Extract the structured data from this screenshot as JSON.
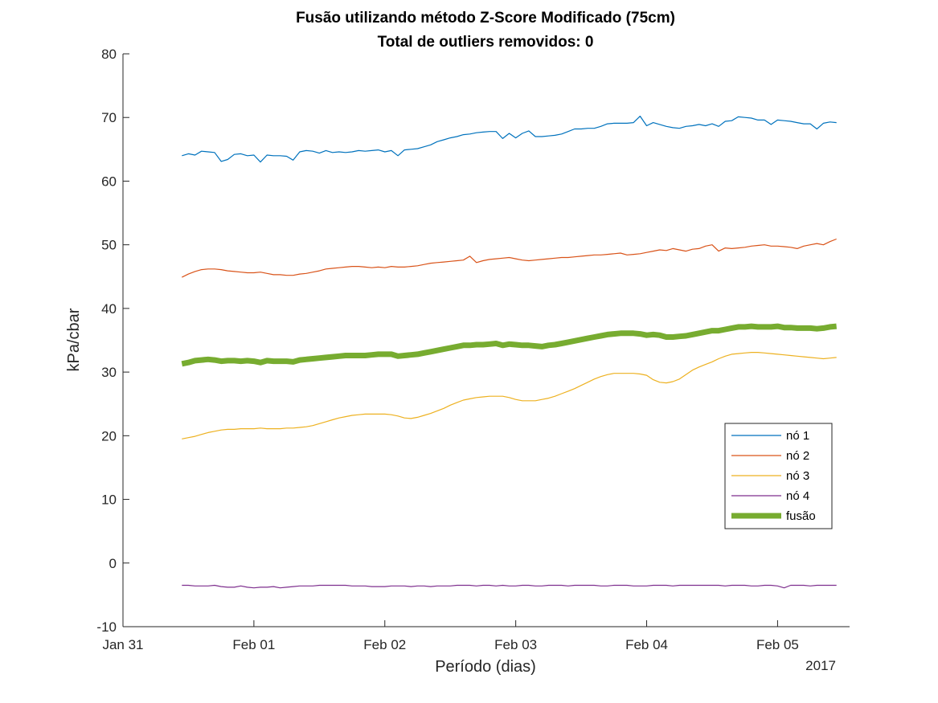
{
  "chart_data": {
    "type": "line",
    "title": "Fusão utilizando método Z-Score Modificado (75cm)",
    "subtitle": "Total de outliers removidos: 0",
    "xlabel": "Período (dias)",
    "ylabel": "kPa/cbar",
    "year_label": "2017",
    "x_unit": "days since Jan 31 2017 00:00",
    "xlim": [
      0,
      5.55
    ],
    "ylim": [
      -10,
      80
    ],
    "x_ticks": [
      {
        "value": 0,
        "label": "Jan 31"
      },
      {
        "value": 1,
        "label": "Feb 01"
      },
      {
        "value": 2,
        "label": "Feb 02"
      },
      {
        "value": 3,
        "label": "Feb 03"
      },
      {
        "value": 4,
        "label": "Feb 04"
      },
      {
        "value": 5,
        "label": "Feb 05"
      }
    ],
    "y_ticks": [
      -10,
      0,
      10,
      20,
      30,
      40,
      50,
      60,
      70,
      80
    ],
    "grid": false,
    "legend_position": "right",
    "x": [
      0.45,
      0.5,
      0.55,
      0.6,
      0.65,
      0.7,
      0.75,
      0.8,
      0.85,
      0.9,
      0.95,
      1.0,
      1.05,
      1.1,
      1.15,
      1.2,
      1.25,
      1.3,
      1.35,
      1.4,
      1.45,
      1.5,
      1.55,
      1.6,
      1.65,
      1.7,
      1.75,
      1.8,
      1.85,
      1.9,
      1.95,
      2.0,
      2.05,
      2.1,
      2.15,
      2.2,
      2.25,
      2.3,
      2.35,
      2.4,
      2.45,
      2.5,
      2.55,
      2.6,
      2.65,
      2.7,
      2.75,
      2.8,
      2.85,
      2.9,
      2.95,
      3.0,
      3.05,
      3.1,
      3.15,
      3.2,
      3.25,
      3.3,
      3.35,
      3.4,
      3.45,
      3.5,
      3.55,
      3.6,
      3.65,
      3.7,
      3.75,
      3.8,
      3.85,
      3.9,
      3.95,
      4.0,
      4.05,
      4.1,
      4.15,
      4.2,
      4.25,
      4.3,
      4.35,
      4.4,
      4.45,
      4.5,
      4.55,
      4.6,
      4.65,
      4.7,
      4.75,
      4.8,
      4.85,
      4.9,
      4.95,
      5.0,
      5.05,
      5.1,
      5.15,
      5.2,
      5.25,
      5.3,
      5.35,
      5.4,
      5.45
    ],
    "series": [
      {
        "name": "nó 1",
        "color": "#0072bd",
        "width": 1.2,
        "values": [
          64.0,
          64.3,
          64.1,
          64.7,
          64.6,
          64.5,
          63.1,
          63.4,
          64.2,
          64.3,
          64.0,
          64.1,
          63.0,
          64.1,
          64.0,
          64.0,
          63.9,
          63.3,
          64.6,
          64.8,
          64.7,
          64.4,
          64.8,
          64.5,
          64.6,
          64.5,
          64.6,
          64.8,
          64.7,
          64.8,
          64.9,
          64.6,
          64.8,
          64.0,
          64.9,
          65.0,
          65.1,
          65.4,
          65.7,
          66.2,
          66.5,
          66.8,
          67.0,
          67.3,
          67.4,
          67.6,
          67.7,
          67.8,
          67.8,
          66.7,
          67.5,
          66.8,
          67.5,
          67.9,
          67.0,
          67.0,
          67.1,
          67.2,
          67.4,
          67.8,
          68.2,
          68.2,
          68.3,
          68.3,
          68.6,
          69.0,
          69.1,
          69.1,
          69.1,
          69.2,
          70.2,
          68.7,
          69.2,
          68.9,
          68.6,
          68.4,
          68.3,
          68.6,
          68.7,
          68.9,
          68.7,
          69.0,
          68.6,
          69.4,
          69.5,
          70.1,
          70.0,
          69.9,
          69.6,
          69.6,
          68.9,
          69.6,
          69.5,
          69.4,
          69.2,
          69.0,
          69.0,
          68.2,
          69.1,
          69.3,
          69.2
        ]
      },
      {
        "name": "nó 2",
        "color": "#d95319",
        "width": 1.2,
        "values": [
          44.9,
          45.4,
          45.8,
          46.1,
          46.2,
          46.2,
          46.1,
          45.9,
          45.8,
          45.7,
          45.6,
          45.6,
          45.7,
          45.5,
          45.3,
          45.3,
          45.2,
          45.2,
          45.4,
          45.5,
          45.7,
          45.9,
          46.2,
          46.3,
          46.4,
          46.5,
          46.6,
          46.6,
          46.5,
          46.4,
          46.5,
          46.4,
          46.6,
          46.5,
          46.5,
          46.6,
          46.7,
          46.9,
          47.1,
          47.2,
          47.3,
          47.4,
          47.5,
          47.6,
          48.2,
          47.2,
          47.5,
          47.7,
          47.8,
          47.9,
          48.0,
          47.8,
          47.6,
          47.5,
          47.6,
          47.7,
          47.8,
          47.9,
          48.0,
          48.0,
          48.1,
          48.2,
          48.3,
          48.4,
          48.4,
          48.5,
          48.6,
          48.7,
          48.4,
          48.5,
          48.6,
          48.8,
          49.0,
          49.2,
          49.1,
          49.4,
          49.2,
          49.0,
          49.3,
          49.4,
          49.8,
          50.0,
          49.0,
          49.5,
          49.4,
          49.5,
          49.6,
          49.8,
          49.9,
          50.0,
          49.8,
          49.8,
          49.7,
          49.6,
          49.4,
          49.8,
          50.0,
          50.2,
          50.0,
          50.5,
          50.9
        ]
      },
      {
        "name": "nó 3",
        "color": "#edb120",
        "width": 1.2,
        "values": [
          19.5,
          19.7,
          19.9,
          20.2,
          20.5,
          20.7,
          20.9,
          21.0,
          21.0,
          21.1,
          21.1,
          21.1,
          21.2,
          21.1,
          21.1,
          21.1,
          21.2,
          21.2,
          21.3,
          21.4,
          21.6,
          21.9,
          22.2,
          22.5,
          22.8,
          23.0,
          23.2,
          23.3,
          23.4,
          23.4,
          23.4,
          23.4,
          23.3,
          23.1,
          22.8,
          22.7,
          22.9,
          23.2,
          23.5,
          23.9,
          24.3,
          24.8,
          25.2,
          25.6,
          25.8,
          26.0,
          26.1,
          26.2,
          26.2,
          26.2,
          26.0,
          25.7,
          25.5,
          25.5,
          25.5,
          25.7,
          25.9,
          26.2,
          26.6,
          27.0,
          27.4,
          27.9,
          28.4,
          28.9,
          29.3,
          29.6,
          29.8,
          29.8,
          29.8,
          29.8,
          29.7,
          29.5,
          28.8,
          28.4,
          28.3,
          28.5,
          28.9,
          29.6,
          30.3,
          30.8,
          31.2,
          31.6,
          32.1,
          32.5,
          32.8,
          32.9,
          33.0,
          33.1,
          33.1,
          33.0,
          32.9,
          32.8,
          32.7,
          32.6,
          32.5,
          32.4,
          32.3,
          32.2,
          32.1,
          32.2,
          32.3
        ]
      },
      {
        "name": "nó 4",
        "color": "#7e2f8e",
        "width": 1.2,
        "values": [
          -3.5,
          -3.5,
          -3.6,
          -3.6,
          -3.6,
          -3.5,
          -3.7,
          -3.8,
          -3.8,
          -3.6,
          -3.8,
          -3.9,
          -3.8,
          -3.8,
          -3.7,
          -3.9,
          -3.8,
          -3.7,
          -3.6,
          -3.6,
          -3.6,
          -3.5,
          -3.5,
          -3.5,
          -3.5,
          -3.5,
          -3.6,
          -3.6,
          -3.6,
          -3.7,
          -3.7,
          -3.7,
          -3.6,
          -3.6,
          -3.6,
          -3.7,
          -3.6,
          -3.6,
          -3.7,
          -3.6,
          -3.6,
          -3.6,
          -3.5,
          -3.5,
          -3.5,
          -3.6,
          -3.5,
          -3.5,
          -3.6,
          -3.5,
          -3.6,
          -3.6,
          -3.5,
          -3.5,
          -3.6,
          -3.6,
          -3.5,
          -3.5,
          -3.5,
          -3.6,
          -3.5,
          -3.5,
          -3.5,
          -3.5,
          -3.6,
          -3.6,
          -3.5,
          -3.5,
          -3.5,
          -3.6,
          -3.6,
          -3.6,
          -3.5,
          -3.5,
          -3.5,
          -3.6,
          -3.5,
          -3.5,
          -3.5,
          -3.5,
          -3.5,
          -3.5,
          -3.5,
          -3.6,
          -3.5,
          -3.5,
          -3.5,
          -3.6,
          -3.6,
          -3.5,
          -3.5,
          -3.6,
          -3.9,
          -3.5,
          -3.5,
          -3.5,
          -3.6,
          -3.5,
          -3.5,
          -3.5,
          -3.5
        ]
      },
      {
        "name": "fusão",
        "color": "#77ac30",
        "width": 7,
        "values": [
          31.3,
          31.5,
          31.8,
          31.9,
          32.0,
          31.9,
          31.7,
          31.8,
          31.8,
          31.7,
          31.8,
          31.7,
          31.5,
          31.8,
          31.7,
          31.7,
          31.7,
          31.6,
          31.9,
          32.0,
          32.1,
          32.2,
          32.3,
          32.4,
          32.5,
          32.6,
          32.6,
          32.6,
          32.6,
          32.7,
          32.8,
          32.8,
          32.8,
          32.5,
          32.6,
          32.7,
          32.8,
          33.0,
          33.2,
          33.4,
          33.6,
          33.8,
          34.0,
          34.2,
          34.2,
          34.3,
          34.3,
          34.4,
          34.5,
          34.2,
          34.4,
          34.3,
          34.2,
          34.2,
          34.1,
          34.0,
          34.2,
          34.3,
          34.5,
          34.7,
          34.9,
          35.1,
          35.3,
          35.5,
          35.7,
          35.9,
          36.0,
          36.1,
          36.1,
          36.1,
          36.0,
          35.8,
          35.9,
          35.8,
          35.5,
          35.5,
          35.6,
          35.7,
          35.9,
          36.1,
          36.3,
          36.5,
          36.5,
          36.7,
          36.9,
          37.1,
          37.1,
          37.2,
          37.1,
          37.1,
          37.1,
          37.2,
          37.0,
          37.0,
          36.9,
          36.9,
          36.9,
          36.8,
          36.9,
          37.1,
          37.2
        ]
      }
    ]
  }
}
